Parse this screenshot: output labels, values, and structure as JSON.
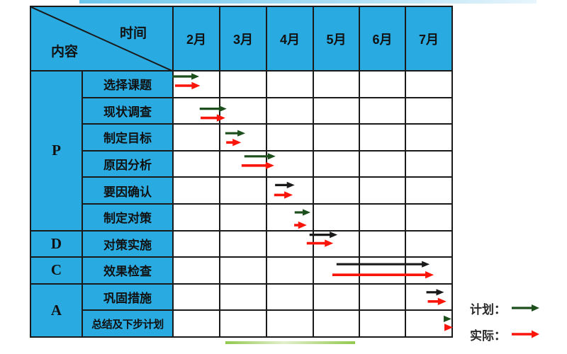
{
  "colors": {
    "header_fill": "#29abe2",
    "grid_line": "#1a1a1a",
    "plan_green": "#1d4f1d",
    "plan_black": "#1a1a1a",
    "actual_red": "#fa150a"
  },
  "header": {
    "corner_top_right": "时间",
    "corner_bottom_left": "内容"
  },
  "chart_data": {
    "type": "gantt",
    "title": "",
    "x_axis": {
      "unit": "month",
      "range": [
        "2月",
        "7月"
      ]
    },
    "months": [
      "2月",
      "3月",
      "4月",
      "5月",
      "6月",
      "7月"
    ],
    "phases": [
      {
        "label": "P",
        "task_count": 6
      },
      {
        "label": "D",
        "task_count": 1
      },
      {
        "label": "C",
        "task_count": 1
      },
      {
        "label": "A",
        "task_count": 2
      }
    ],
    "legend": [
      {
        "label": "计划：",
        "series": "plan",
        "color": "#1d4f1d"
      },
      {
        "label": "实际：",
        "series": "actual",
        "color": "#fa150a"
      }
    ],
    "tasks": [
      {
        "phase": "P",
        "label": "选择课题",
        "plan": {
          "start_month": 0.0,
          "end_month": 0.58,
          "style": "green"
        },
        "actual": {
          "start_month": 0.06,
          "end_month": 0.6
        }
      },
      {
        "phase": "P",
        "label": "现状调查",
        "plan": {
          "start_month": 0.59,
          "end_month": 1.17,
          "style": "green"
        },
        "actual": {
          "start_month": 0.61,
          "end_month": 1.14
        }
      },
      {
        "phase": "P",
        "label": "制定目标",
        "plan": {
          "start_month": 1.14,
          "end_month": 1.57,
          "style": "green"
        },
        "actual": {
          "start_month": 1.16,
          "end_month": 1.48
        }
      },
      {
        "phase": "P",
        "label": "原因分析",
        "plan": {
          "start_month": 1.55,
          "end_month": 2.22,
          "style": "green"
        },
        "actual": {
          "start_month": 1.49,
          "end_month": 2.19
        }
      },
      {
        "phase": "P",
        "label": "要因确认",
        "plan": {
          "start_month": 2.21,
          "end_month": 2.63,
          "style": "black"
        },
        "actual": {
          "start_month": 2.19,
          "end_month": 2.59
        }
      },
      {
        "phase": "P",
        "label": "制定对策",
        "plan": {
          "start_month": 2.63,
          "end_month": 2.97,
          "style": "green"
        },
        "actual": {
          "start_month": 2.62,
          "end_month": 2.89
        }
      },
      {
        "phase": "D",
        "label": "对策实施",
        "plan": {
          "start_month": 2.95,
          "end_month": 3.55,
          "style": "black"
        },
        "actual": {
          "start_month": 2.89,
          "end_month": 3.46
        }
      },
      {
        "phase": "C",
        "label": "效果检查",
        "plan": {
          "start_month": 3.53,
          "end_month": 5.53,
          "style": "black"
        },
        "actual": {
          "start_month": 3.44,
          "end_month": 5.62
        }
      },
      {
        "phase": "A",
        "label": "巩固措施",
        "plan": {
          "start_month": 5.46,
          "end_month": 5.84,
          "style": "black"
        },
        "actual": {
          "start_month": 5.49,
          "end_month": 5.89
        }
      },
      {
        "phase": "A",
        "label": "总结及下步计划",
        "plan": {
          "start_month": 5.84,
          "end_month": 6.0,
          "style": "green"
        },
        "actual": {
          "start_month": 5.86,
          "end_month": 6.03
        }
      }
    ]
  }
}
